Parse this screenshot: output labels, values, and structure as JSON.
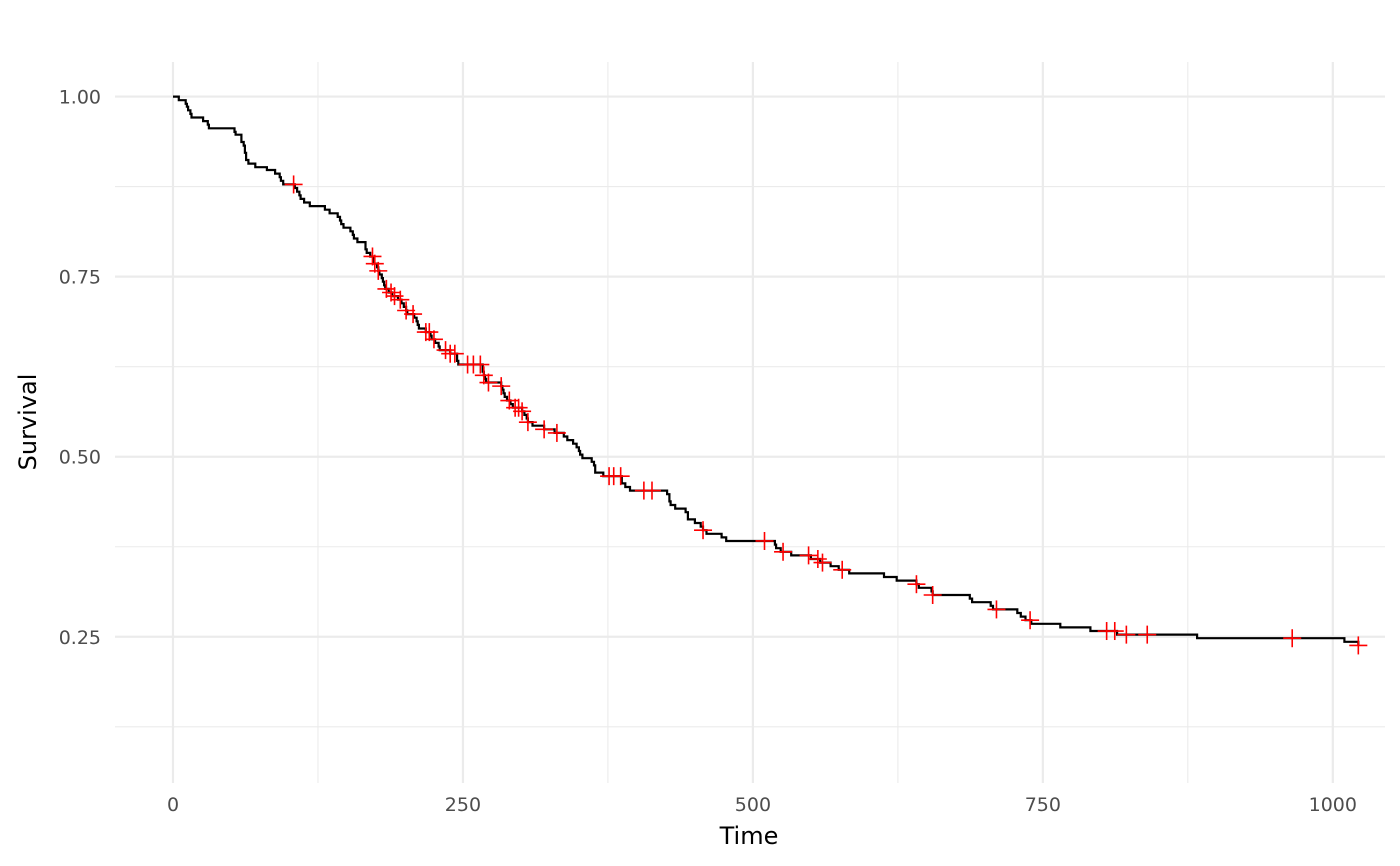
{
  "chart_data": {
    "type": "line",
    "step": true,
    "xlabel": "Time",
    "ylabel": "Survival",
    "xlim": [
      -50,
      1045
    ],
    "ylim": [
      0.047,
      1.048
    ],
    "x_major_ticks": [
      0,
      250,
      500,
      750,
      1000
    ],
    "x_tick_labels": [
      "0",
      "250",
      "500",
      "750",
      "1000"
    ],
    "x_minor_ticks": [
      125,
      375,
      625,
      875
    ],
    "y_major_ticks": [
      0.25,
      0.5,
      0.75,
      1.0
    ],
    "y_tick_labels": [
      "0.25",
      "0.50",
      "0.75",
      "1.00"
    ],
    "y_minor_ticks": [
      0.125,
      0.375,
      0.625,
      0.875
    ],
    "grid": true,
    "legend": "none",
    "colors": {
      "line": "#000000",
      "censor": "#ff0000",
      "grid": "#ebebeb"
    },
    "series": [
      {
        "survival_steps": [
          [
            0,
            1.0
          ],
          [
            5,
            0.995
          ],
          [
            11,
            0.99
          ],
          [
            12,
            0.986
          ],
          [
            13,
            0.981
          ],
          [
            15,
            0.976
          ],
          [
            16,
            0.971
          ],
          [
            26,
            0.966
          ],
          [
            30,
            0.961
          ],
          [
            31,
            0.956
          ],
          [
            53,
            0.951
          ],
          [
            54,
            0.947
          ],
          [
            59,
            0.937
          ],
          [
            61,
            0.932
          ],
          [
            62,
            0.922
          ],
          [
            63,
            0.912
          ],
          [
            65,
            0.907
          ],
          [
            71,
            0.902
          ],
          [
            81,
            0.898
          ],
          [
            88,
            0.893
          ],
          [
            92,
            0.888
          ],
          [
            93,
            0.883
          ],
          [
            95,
            0.878
          ],
          [
            105,
            0.873
          ],
          [
            107,
            0.868
          ],
          [
            109,
            0.863
          ],
          [
            110,
            0.858
          ],
          [
            113,
            0.853
          ],
          [
            118,
            0.848
          ],
          [
            131,
            0.843
          ],
          [
            135,
            0.838
          ],
          [
            142,
            0.833
          ],
          [
            144,
            0.828
          ],
          [
            145,
            0.823
          ],
          [
            147,
            0.818
          ],
          [
            153,
            0.813
          ],
          [
            155,
            0.808
          ],
          [
            156,
            0.803
          ],
          [
            159,
            0.798
          ],
          [
            166,
            0.788
          ],
          [
            167,
            0.783
          ],
          [
            170,
            0.778
          ],
          [
            173,
            0.768
          ],
          [
            176,
            0.763
          ],
          [
            177,
            0.758
          ],
          [
            178,
            0.753
          ],
          [
            180,
            0.748
          ],
          [
            181,
            0.743
          ],
          [
            182,
            0.738
          ],
          [
            183,
            0.733
          ],
          [
            186,
            0.728
          ],
          [
            189,
            0.723
          ],
          [
            194,
            0.718
          ],
          [
            197,
            0.713
          ],
          [
            199,
            0.708
          ],
          [
            201,
            0.703
          ],
          [
            202,
            0.698
          ],
          [
            208,
            0.693
          ],
          [
            210,
            0.688
          ],
          [
            211,
            0.683
          ],
          [
            212,
            0.678
          ],
          [
            218,
            0.673
          ],
          [
            222,
            0.668
          ],
          [
            223,
            0.663
          ],
          [
            226,
            0.658
          ],
          [
            229,
            0.653
          ],
          [
            230,
            0.648
          ],
          [
            239,
            0.643
          ],
          [
            245,
            0.633
          ],
          [
            246,
            0.628
          ],
          [
            267,
            0.618
          ],
          [
            268,
            0.613
          ],
          [
            269,
            0.608
          ],
          [
            270,
            0.603
          ],
          [
            283,
            0.598
          ],
          [
            284,
            0.593
          ],
          [
            285,
            0.588
          ],
          [
            286,
            0.583
          ],
          [
            288,
            0.578
          ],
          [
            291,
            0.573
          ],
          [
            293,
            0.568
          ],
          [
            301,
            0.563
          ],
          [
            303,
            0.558
          ],
          [
            305,
            0.553
          ],
          [
            306,
            0.548
          ],
          [
            310,
            0.543
          ],
          [
            320,
            0.538
          ],
          [
            329,
            0.533
          ],
          [
            337,
            0.528
          ],
          [
            340,
            0.523
          ],
          [
            345,
            0.518
          ],
          [
            348,
            0.513
          ],
          [
            350,
            0.508
          ],
          [
            351,
            0.503
          ],
          [
            353,
            0.498
          ],
          [
            361,
            0.493
          ],
          [
            363,
            0.488
          ],
          [
            364,
            0.478
          ],
          [
            371,
            0.473
          ],
          [
            387,
            0.463
          ],
          [
            390,
            0.458
          ],
          [
            394,
            0.453
          ],
          [
            426,
            0.448
          ],
          [
            428,
            0.438
          ],
          [
            429,
            0.433
          ],
          [
            433,
            0.428
          ],
          [
            442,
            0.423
          ],
          [
            444,
            0.413
          ],
          [
            450,
            0.408
          ],
          [
            455,
            0.403
          ],
          [
            457,
            0.398
          ],
          [
            460,
            0.393
          ],
          [
            473,
            0.388
          ],
          [
            477,
            0.383
          ],
          [
            519,
            0.378
          ],
          [
            520,
            0.373
          ],
          [
            524,
            0.368
          ],
          [
            533,
            0.363
          ],
          [
            550,
            0.358
          ],
          [
            558,
            0.353
          ],
          [
            567,
            0.348
          ],
          [
            574,
            0.343
          ],
          [
            583,
            0.338
          ],
          [
            613,
            0.333
          ],
          [
            624,
            0.328
          ],
          [
            641,
            0.323
          ],
          [
            643,
            0.318
          ],
          [
            654,
            0.313
          ],
          [
            655,
            0.308
          ],
          [
            687,
            0.303
          ],
          [
            689,
            0.298
          ],
          [
            705,
            0.293
          ],
          [
            707,
            0.288
          ],
          [
            728,
            0.283
          ],
          [
            731,
            0.278
          ],
          [
            735,
            0.273
          ],
          [
            740,
            0.268
          ],
          [
            765,
            0.263
          ],
          [
            791,
            0.258
          ],
          [
            814,
            0.253
          ],
          [
            883,
            0.248
          ],
          [
            1010,
            0.243
          ],
          [
            1022,
            0.238
          ]
        ],
        "censored_times": [
          104,
          172,
          174,
          177,
          184,
          188,
          191,
          196,
          201,
          207,
          218,
          221,
          225,
          235,
          239,
          243,
          254,
          259,
          265,
          268,
          272,
          283,
          290,
          295,
          298,
          301,
          306,
          320,
          331,
          376,
          380,
          386,
          406,
          413,
          457,
          510,
          526,
          548,
          556,
          560,
          577,
          641,
          655,
          710,
          739,
          805,
          812,
          822,
          840,
          965,
          1022
        ]
      }
    ]
  }
}
